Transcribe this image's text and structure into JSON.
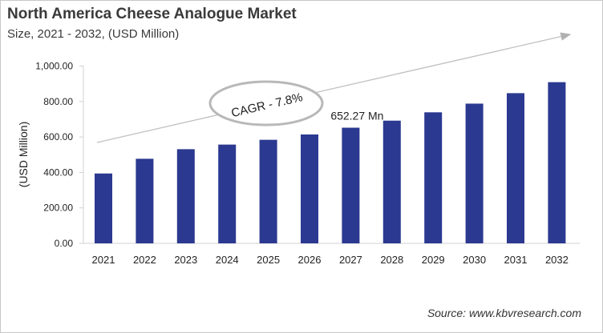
{
  "chart_data": {
    "type": "bar",
    "title": "North America Cheese Analogue Market",
    "subtitle": "Size, 2021 - 2032, (USD Million)",
    "xlabel": "",
    "ylabel": "(USD Million)",
    "ylim": [
      0,
      1000
    ],
    "yticks": [
      "0.00",
      "200.00",
      "400.00",
      "600.00",
      "800.00",
      "1,000.00"
    ],
    "categories": [
      "2021",
      "2022",
      "2023",
      "2024",
      "2025",
      "2026",
      "2027",
      "2028",
      "2029",
      "2030",
      "2031",
      "2032"
    ],
    "values": [
      394,
      477,
      531,
      557,
      584,
      614,
      652.27,
      692,
      739,
      788,
      847,
      909
    ],
    "bar_color": "#2b3990",
    "grid": false,
    "annotations": {
      "data_label": "652.27 Mn",
      "data_label_category": "2027",
      "cagr": "CAGR - 7.8%"
    },
    "source": "Source: www.kbvresearch.com"
  }
}
